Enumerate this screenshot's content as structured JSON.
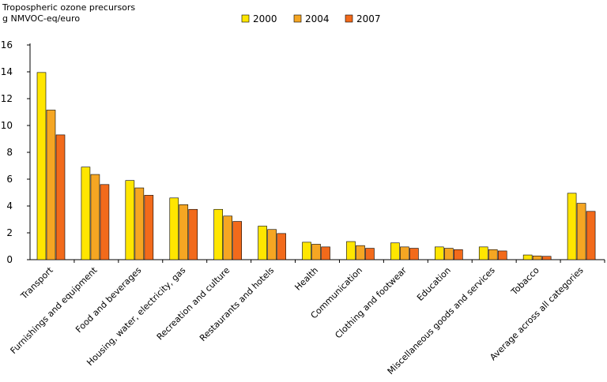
{
  "chart_data": {
    "type": "bar",
    "ylabel_lines": [
      "Tropospheric ozone precursors",
      "g NMVOC-eq/euro"
    ],
    "xlabel": "",
    "ylim": [
      0,
      16
    ],
    "yticks": [
      0,
      2,
      4,
      6,
      8,
      10,
      12,
      14,
      16
    ],
    "grid": false,
    "legend_position": "top",
    "categories": [
      "Transport",
      "Furnishings and equipment",
      "Food and beverages",
      "Housing, water, electricity, gas",
      "Recreation and culture",
      "Restaurants and hotels",
      "Health",
      "Communication",
      "Clothing and footwear",
      "Education",
      "Miscellaneous goods and services",
      "Tobacco",
      "Average across all categories"
    ],
    "series": [
      {
        "name": "2000",
        "color": "#ffe600",
        "values": [
          13.95,
          6.9,
          5.9,
          4.6,
          3.75,
          2.5,
          1.3,
          1.35,
          1.25,
          0.95,
          0.95,
          0.35,
          4.95
        ]
      },
      {
        "name": "2004",
        "color": "#f5a623",
        "values": [
          11.15,
          6.35,
          5.35,
          4.1,
          3.25,
          2.25,
          1.15,
          1.05,
          0.95,
          0.85,
          0.75,
          0.28,
          4.2
        ]
      },
      {
        "name": "2007",
        "color": "#f26a1b",
        "values": [
          9.3,
          5.6,
          4.8,
          3.75,
          2.85,
          1.95,
          0.95,
          0.85,
          0.85,
          0.75,
          0.65,
          0.25,
          3.6
        ]
      }
    ]
  }
}
